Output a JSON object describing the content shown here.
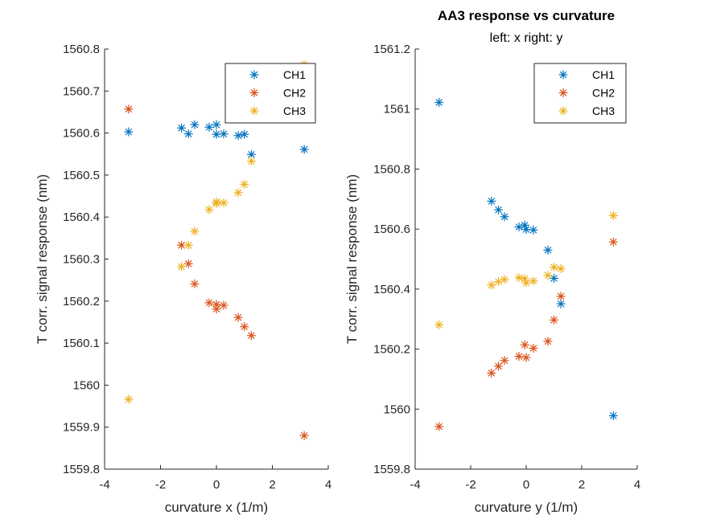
{
  "figure": {
    "title": "AA3 response vs curvature",
    "subtitle": "left: x  right: y"
  },
  "colors": {
    "CH1": "#0072BD",
    "CH2": "#D95319",
    "CH3": "#EDB120"
  },
  "chart_data": [
    {
      "type": "scatter",
      "xlabel": "curvature x (1/m)",
      "ylabel": "T corr. signal response (nm)",
      "xlim": [
        -4,
        4
      ],
      "ylim": [
        1559.8,
        1560.8
      ],
      "xticks": [
        -4,
        -2,
        0,
        2,
        4
      ],
      "yticks": [
        1559.8,
        1559.9,
        1560,
        1560.1,
        1560.2,
        1560.3,
        1560.4,
        1560.5,
        1560.6,
        1560.7,
        1560.8
      ],
      "xtick_labels": [
        "-4",
        "-2",
        "0",
        "2",
        "4"
      ],
      "ytick_labels": [
        "1559.8",
        "1559.9",
        "1560",
        "1560.1",
        "1560.2",
        "1560.3",
        "1560.4",
        "1560.5",
        "1560.6",
        "1560.7",
        "1560.8"
      ],
      "marker": "asterisk",
      "legend_position": "top-right",
      "series": [
        {
          "name": "CH1",
          "x": [
            -3.14,
            -1.25,
            -1.0,
            -0.78,
            -0.26,
            0.0,
            0.0,
            0.26,
            0.78,
            1.0,
            1.25,
            3.14
          ],
          "y": [
            1560.603,
            1560.612,
            1560.598,
            1560.62,
            1560.614,
            1560.62,
            1560.597,
            1560.598,
            1560.594,
            1560.597,
            1560.549,
            1560.561
          ]
        },
        {
          "name": "CH2",
          "x": [
            -3.14,
            -1.25,
            -1.0,
            -0.78,
            -0.26,
            0.0,
            0.0,
            0.26,
            0.78,
            1.0,
            1.25,
            3.14
          ],
          "y": [
            1560.657,
            1560.333,
            1560.289,
            1560.241,
            1560.196,
            1560.192,
            1560.181,
            1560.19,
            1560.161,
            1560.139,
            1560.118,
            1559.88
          ]
        },
        {
          "name": "CH3",
          "x": [
            -3.14,
            -1.25,
            -1.0,
            -0.78,
            -0.26,
            0.0,
            0.0,
            0.26,
            0.78,
            1.0,
            1.25,
            3.14
          ],
          "y": [
            1559.966,
            1560.282,
            1560.333,
            1560.366,
            1560.418,
            1560.436,
            1560.432,
            1560.434,
            1560.458,
            1560.478,
            1560.533,
            1560.763
          ]
        }
      ]
    },
    {
      "type": "scatter",
      "xlabel": "curvature y (1/m)",
      "ylabel": "T corr. signal response (nm)",
      "xlim": [
        -4,
        4
      ],
      "ylim": [
        1559.8,
        1561.2
      ],
      "xticks": [
        -4,
        -2,
        0,
        2,
        4
      ],
      "yticks": [
        1559.8,
        1560,
        1560.2,
        1560.4,
        1560.6,
        1560.8,
        1561,
        1561.2
      ],
      "xtick_labels": [
        "-4",
        "-2",
        "0",
        "2",
        "4"
      ],
      "ytick_labels": [
        "1559.8",
        "1560",
        "1560.2",
        "1560.4",
        "1560.6",
        "1560.8",
        "1561",
        "1561.2"
      ],
      "marker": "asterisk",
      "legend_position": "top-right",
      "series": [
        {
          "name": "CH1",
          "x": [
            -3.14,
            -1.25,
            -1.0,
            -0.78,
            -0.26,
            -0.05,
            0.0,
            0.26,
            0.78,
            1.0,
            1.25,
            3.14
          ],
          "y": [
            1561.022,
            1560.693,
            1560.664,
            1560.641,
            1560.607,
            1560.613,
            1560.599,
            1560.597,
            1560.53,
            1560.436,
            1560.351,
            1559.978
          ]
        },
        {
          "name": "CH2",
          "x": [
            -3.14,
            -1.25,
            -1.0,
            -0.78,
            -0.26,
            -0.05,
            0.0,
            0.26,
            0.78,
            1.0,
            1.25,
            3.14
          ],
          "y": [
            1559.942,
            1560.12,
            1560.143,
            1560.162,
            1560.176,
            1560.214,
            1560.172,
            1560.203,
            1560.226,
            1560.297,
            1560.376,
            1560.557
          ]
        },
        {
          "name": "CH3",
          "x": [
            -3.14,
            -1.25,
            -1.0,
            -0.78,
            -0.26,
            -0.05,
            0.0,
            0.26,
            0.78,
            1.0,
            1.25,
            3.14
          ],
          "y": [
            1560.281,
            1560.413,
            1560.425,
            1560.432,
            1560.438,
            1560.435,
            1560.421,
            1560.427,
            1560.446,
            1560.473,
            1560.468,
            1560.645
          ]
        }
      ]
    }
  ]
}
